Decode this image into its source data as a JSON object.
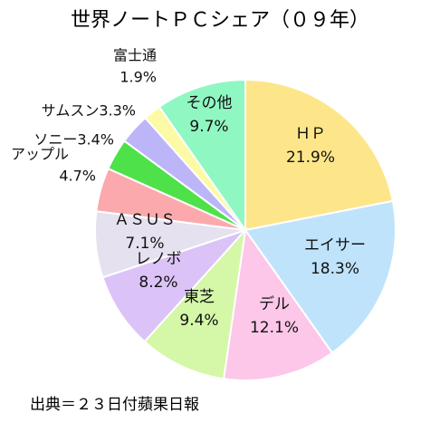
{
  "chart_data": {
    "type": "pie",
    "title": "世界ノートＰＣシェア（０９年）",
    "source": "出典＝２３日付蘋果日報",
    "unit": "%",
    "slices": [
      {
        "label": "ＨＰ",
        "value": 21.9,
        "value_label": "21.9%",
        "color": "#fde68a"
      },
      {
        "label": "エイサー",
        "value": 18.3,
        "value_label": "18.3%",
        "color": "#bfe3fb"
      },
      {
        "label": "デル",
        "value": 12.1,
        "value_label": "12.1%",
        "color": "#fcc7e8"
      },
      {
        "label": "東芝",
        "value": 9.4,
        "value_label": "9.4%",
        "color": "#d4f7a8"
      },
      {
        "label": "レノボ",
        "value": 8.2,
        "value_label": "8.2%",
        "color": "#dbc3f7"
      },
      {
        "label": "ＡＳＵＳ",
        "value": 7.1,
        "value_label": "7.1%",
        "color": "#e6e1ef"
      },
      {
        "label": "アップル",
        "value": 4.7,
        "value_label": "4.7%",
        "color": "#fba9ad"
      },
      {
        "label": "ソニー",
        "value": 3.4,
        "value_label": "3.4%",
        "color": "#4ee14a"
      },
      {
        "label": "サムスン",
        "value": 3.3,
        "value_label": "3.3%",
        "color": "#bcb5f8"
      },
      {
        "label": "富士通",
        "value": 1.9,
        "value_label": "1.9%",
        "color": "#fdfaa5"
      },
      {
        "label": "その他",
        "value": 9.7,
        "value_label": "9.7%",
        "color": "#8ff7c2"
      }
    ],
    "start_angle_deg": 0,
    "direction": "clockwise"
  }
}
